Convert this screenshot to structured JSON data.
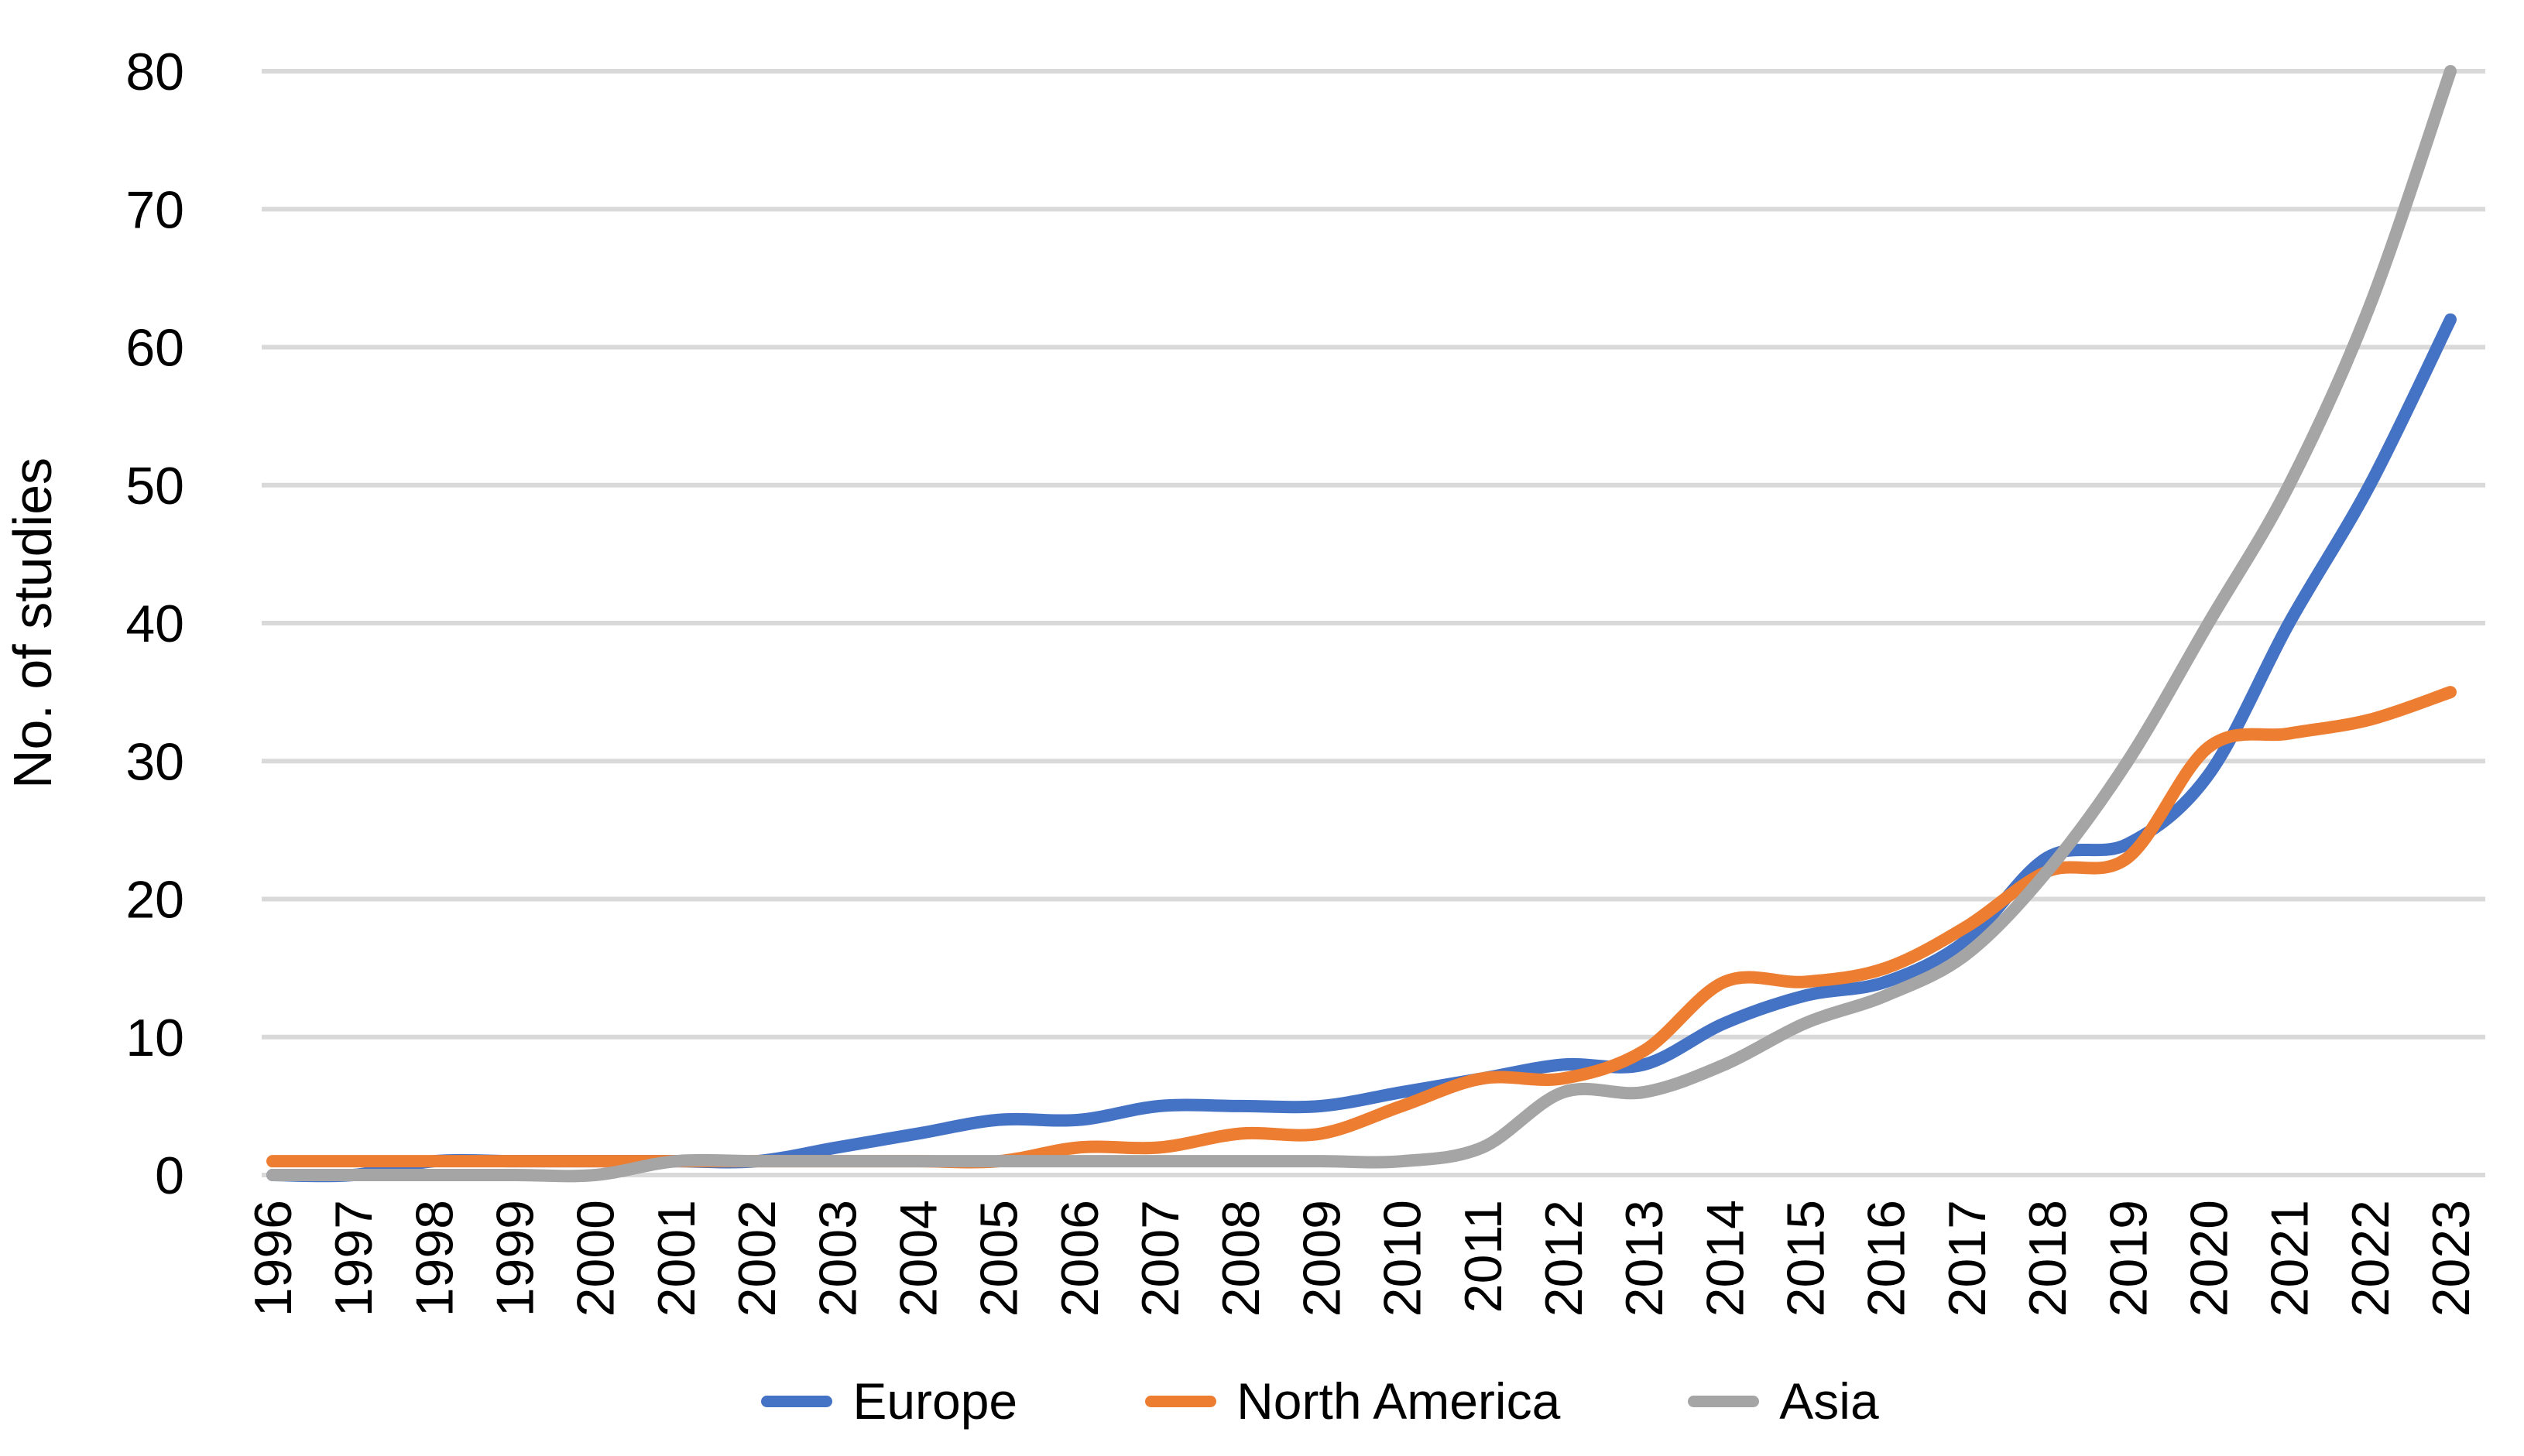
{
  "chart_data": {
    "type": "line",
    "title": "",
    "xlabel": "",
    "ylabel": "No. of studies",
    "ylim": [
      0,
      80
    ],
    "ytick_step": 10,
    "grid": true,
    "smooth_lines": true,
    "legend_position": "bottom",
    "axis_text_color": "#000000",
    "gridline_color": "#D9D9D9",
    "categories": [
      "1996",
      "1997",
      "1998",
      "1999",
      "2000",
      "2001",
      "2002",
      "2003",
      "2004",
      "2005",
      "2006",
      "2007",
      "2008",
      "2009",
      "2010",
      "2011",
      "2012",
      "2013",
      "2014",
      "2015",
      "2016",
      "2017",
      "2018",
      "2019",
      "2020",
      "2021",
      "2022",
      "2023"
    ],
    "series": [
      {
        "name": "Europe",
        "color": "#4472C4",
        "values": [
          0,
          0,
          1,
          1,
          1,
          1,
          1,
          2,
          3,
          4,
          4,
          5,
          5,
          5,
          6,
          7,
          8,
          8,
          11,
          13,
          14,
          17,
          23,
          24,
          29,
          40,
          50,
          62
        ]
      },
      {
        "name": "North America",
        "color": "#ED7D31",
        "values": [
          1,
          1,
          1,
          1,
          1,
          1,
          1,
          1,
          1,
          1,
          2,
          2,
          3,
          3,
          5,
          7,
          7,
          9,
          14,
          14,
          15,
          18,
          22,
          23,
          31,
          32,
          33,
          35
        ]
      },
      {
        "name": "Asia",
        "color": "#A5A5A5",
        "values": [
          0,
          0,
          0,
          0,
          0,
          1,
          1,
          1,
          1,
          1,
          1,
          1,
          1,
          1,
          1,
          2,
          6,
          6,
          8,
          11,
          13,
          16,
          22,
          30,
          40,
          50,
          63,
          80
        ]
      }
    ]
  }
}
